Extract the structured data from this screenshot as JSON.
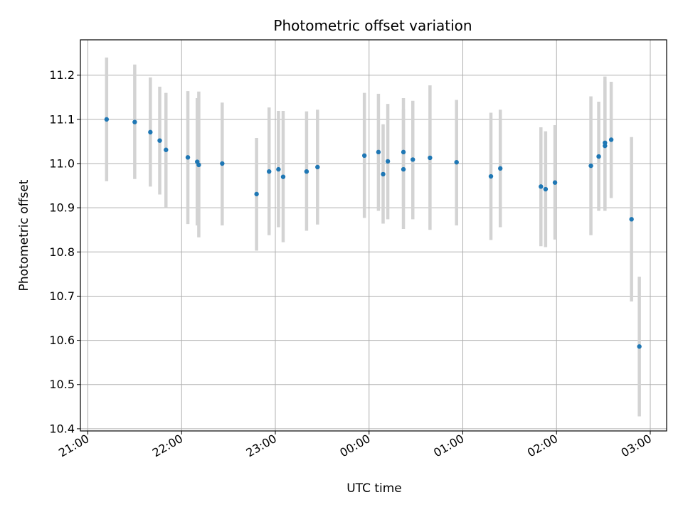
{
  "chart_data": {
    "type": "scatter",
    "title": "Photometric offset variation",
    "xlabel": "UTC time",
    "ylabel": "Photometric offset",
    "x_axis": {
      "kind": "time",
      "range_start": "21:00",
      "range_end": "03:00",
      "day_boundary": "00:00",
      "tick_labels": [
        "21:00",
        "22:00",
        "23:00",
        "00:00",
        "01:00",
        "02:00",
        "03:00"
      ]
    },
    "ylim": [
      10.395,
      11.28
    ],
    "y_ticks": [
      10.4,
      10.5,
      10.6,
      10.7,
      10.8,
      10.9,
      11.0,
      11.1,
      11.2
    ],
    "y_tick_labels": [
      "10.4",
      "10.5",
      "10.6",
      "10.7",
      "10.8",
      "10.9",
      "11.0",
      "11.1",
      "11.2"
    ],
    "grid": true,
    "colors": {
      "point": "#1f77b4",
      "errorbar": "#d3d3d3",
      "grid": "#b0b0b0"
    },
    "points": [
      {
        "t": "21:12",
        "y": 11.1,
        "err_low": 10.96,
        "err_high": 11.24
      },
      {
        "t": "21:30",
        "y": 11.094,
        "err_low": 10.965,
        "err_high": 11.224
      },
      {
        "t": "21:40",
        "y": 11.071,
        "err_low": 10.948,
        "err_high": 11.195
      },
      {
        "t": "21:46",
        "y": 11.052,
        "err_low": 10.93,
        "err_high": 11.174
      },
      {
        "t": "21:50",
        "y": 11.031,
        "err_low": 10.9,
        "err_high": 11.16
      },
      {
        "t": "22:04",
        "y": 11.014,
        "err_low": 10.863,
        "err_high": 11.164
      },
      {
        "t": "22:10",
        "y": 11.004,
        "err_low": 10.86,
        "err_high": 11.148
      },
      {
        "t": "22:11",
        "y": 10.997,
        "err_low": 10.833,
        "err_high": 11.163
      },
      {
        "t": "22:26",
        "y": 11.0,
        "err_low": 10.86,
        "err_high": 11.138
      },
      {
        "t": "22:48",
        "y": 10.931,
        "err_low": 10.803,
        "err_high": 11.058
      },
      {
        "t": "22:56",
        "y": 10.982,
        "err_low": 10.838,
        "err_high": 11.127
      },
      {
        "t": "23:02",
        "y": 10.987,
        "err_low": 10.856,
        "err_high": 11.119
      },
      {
        "t": "23:05",
        "y": 10.97,
        "err_low": 10.822,
        "err_high": 11.119
      },
      {
        "t": "23:20",
        "y": 10.982,
        "err_low": 10.848,
        "err_high": 11.118
      },
      {
        "t": "23:27",
        "y": 10.992,
        "err_low": 10.862,
        "err_high": 11.122
      },
      {
        "t": "23:57",
        "y": 11.018,
        "err_low": 10.877,
        "err_high": 11.16
      },
      {
        "t": "00:06",
        "y": 11.026,
        "err_low": 10.893,
        "err_high": 11.158
      },
      {
        "t": "00:09",
        "y": 10.976,
        "err_low": 10.864,
        "err_high": 11.089
      },
      {
        "t": "00:12",
        "y": 11.005,
        "err_low": 10.874,
        "err_high": 11.135
      },
      {
        "t": "00:22",
        "y": 11.026,
        "err_low": 10.903,
        "err_high": 11.148
      },
      {
        "t": "00:22",
        "y": 10.987,
        "err_low": 10.852,
        "err_high": 11.123
      },
      {
        "t": "00:28",
        "y": 11.009,
        "err_low": 10.874,
        "err_high": 11.142
      },
      {
        "t": "00:39",
        "y": 11.013,
        "err_low": 10.85,
        "err_high": 11.177
      },
      {
        "t": "00:56",
        "y": 11.003,
        "err_low": 10.86,
        "err_high": 11.144
      },
      {
        "t": "01:18",
        "y": 10.971,
        "err_low": 10.827,
        "err_high": 11.115
      },
      {
        "t": "01:24",
        "y": 10.989,
        "err_low": 10.856,
        "err_high": 11.122
      },
      {
        "t": "01:50",
        "y": 10.948,
        "err_low": 10.813,
        "err_high": 11.082
      },
      {
        "t": "01:53",
        "y": 10.942,
        "err_low": 10.811,
        "err_high": 11.073
      },
      {
        "t": "01:59",
        "y": 10.957,
        "err_low": 10.828,
        "err_high": 11.087
      },
      {
        "t": "02:22",
        "y": 10.995,
        "err_low": 10.838,
        "err_high": 11.152
      },
      {
        "t": "02:27",
        "y": 11.016,
        "err_low": 10.893,
        "err_high": 11.14
      },
      {
        "t": "02:31",
        "y": 11.047,
        "err_low": 10.897,
        "err_high": 11.197
      },
      {
        "t": "02:31",
        "y": 11.04,
        "err_low": 10.893,
        "err_high": 11.186
      },
      {
        "t": "02:35",
        "y": 11.054,
        "err_low": 10.922,
        "err_high": 11.185
      },
      {
        "t": "02:48",
        "y": 10.874,
        "err_low": 10.688,
        "err_high": 11.06
      },
      {
        "t": "02:53",
        "y": 10.586,
        "err_low": 10.428,
        "err_high": 10.744
      }
    ]
  }
}
